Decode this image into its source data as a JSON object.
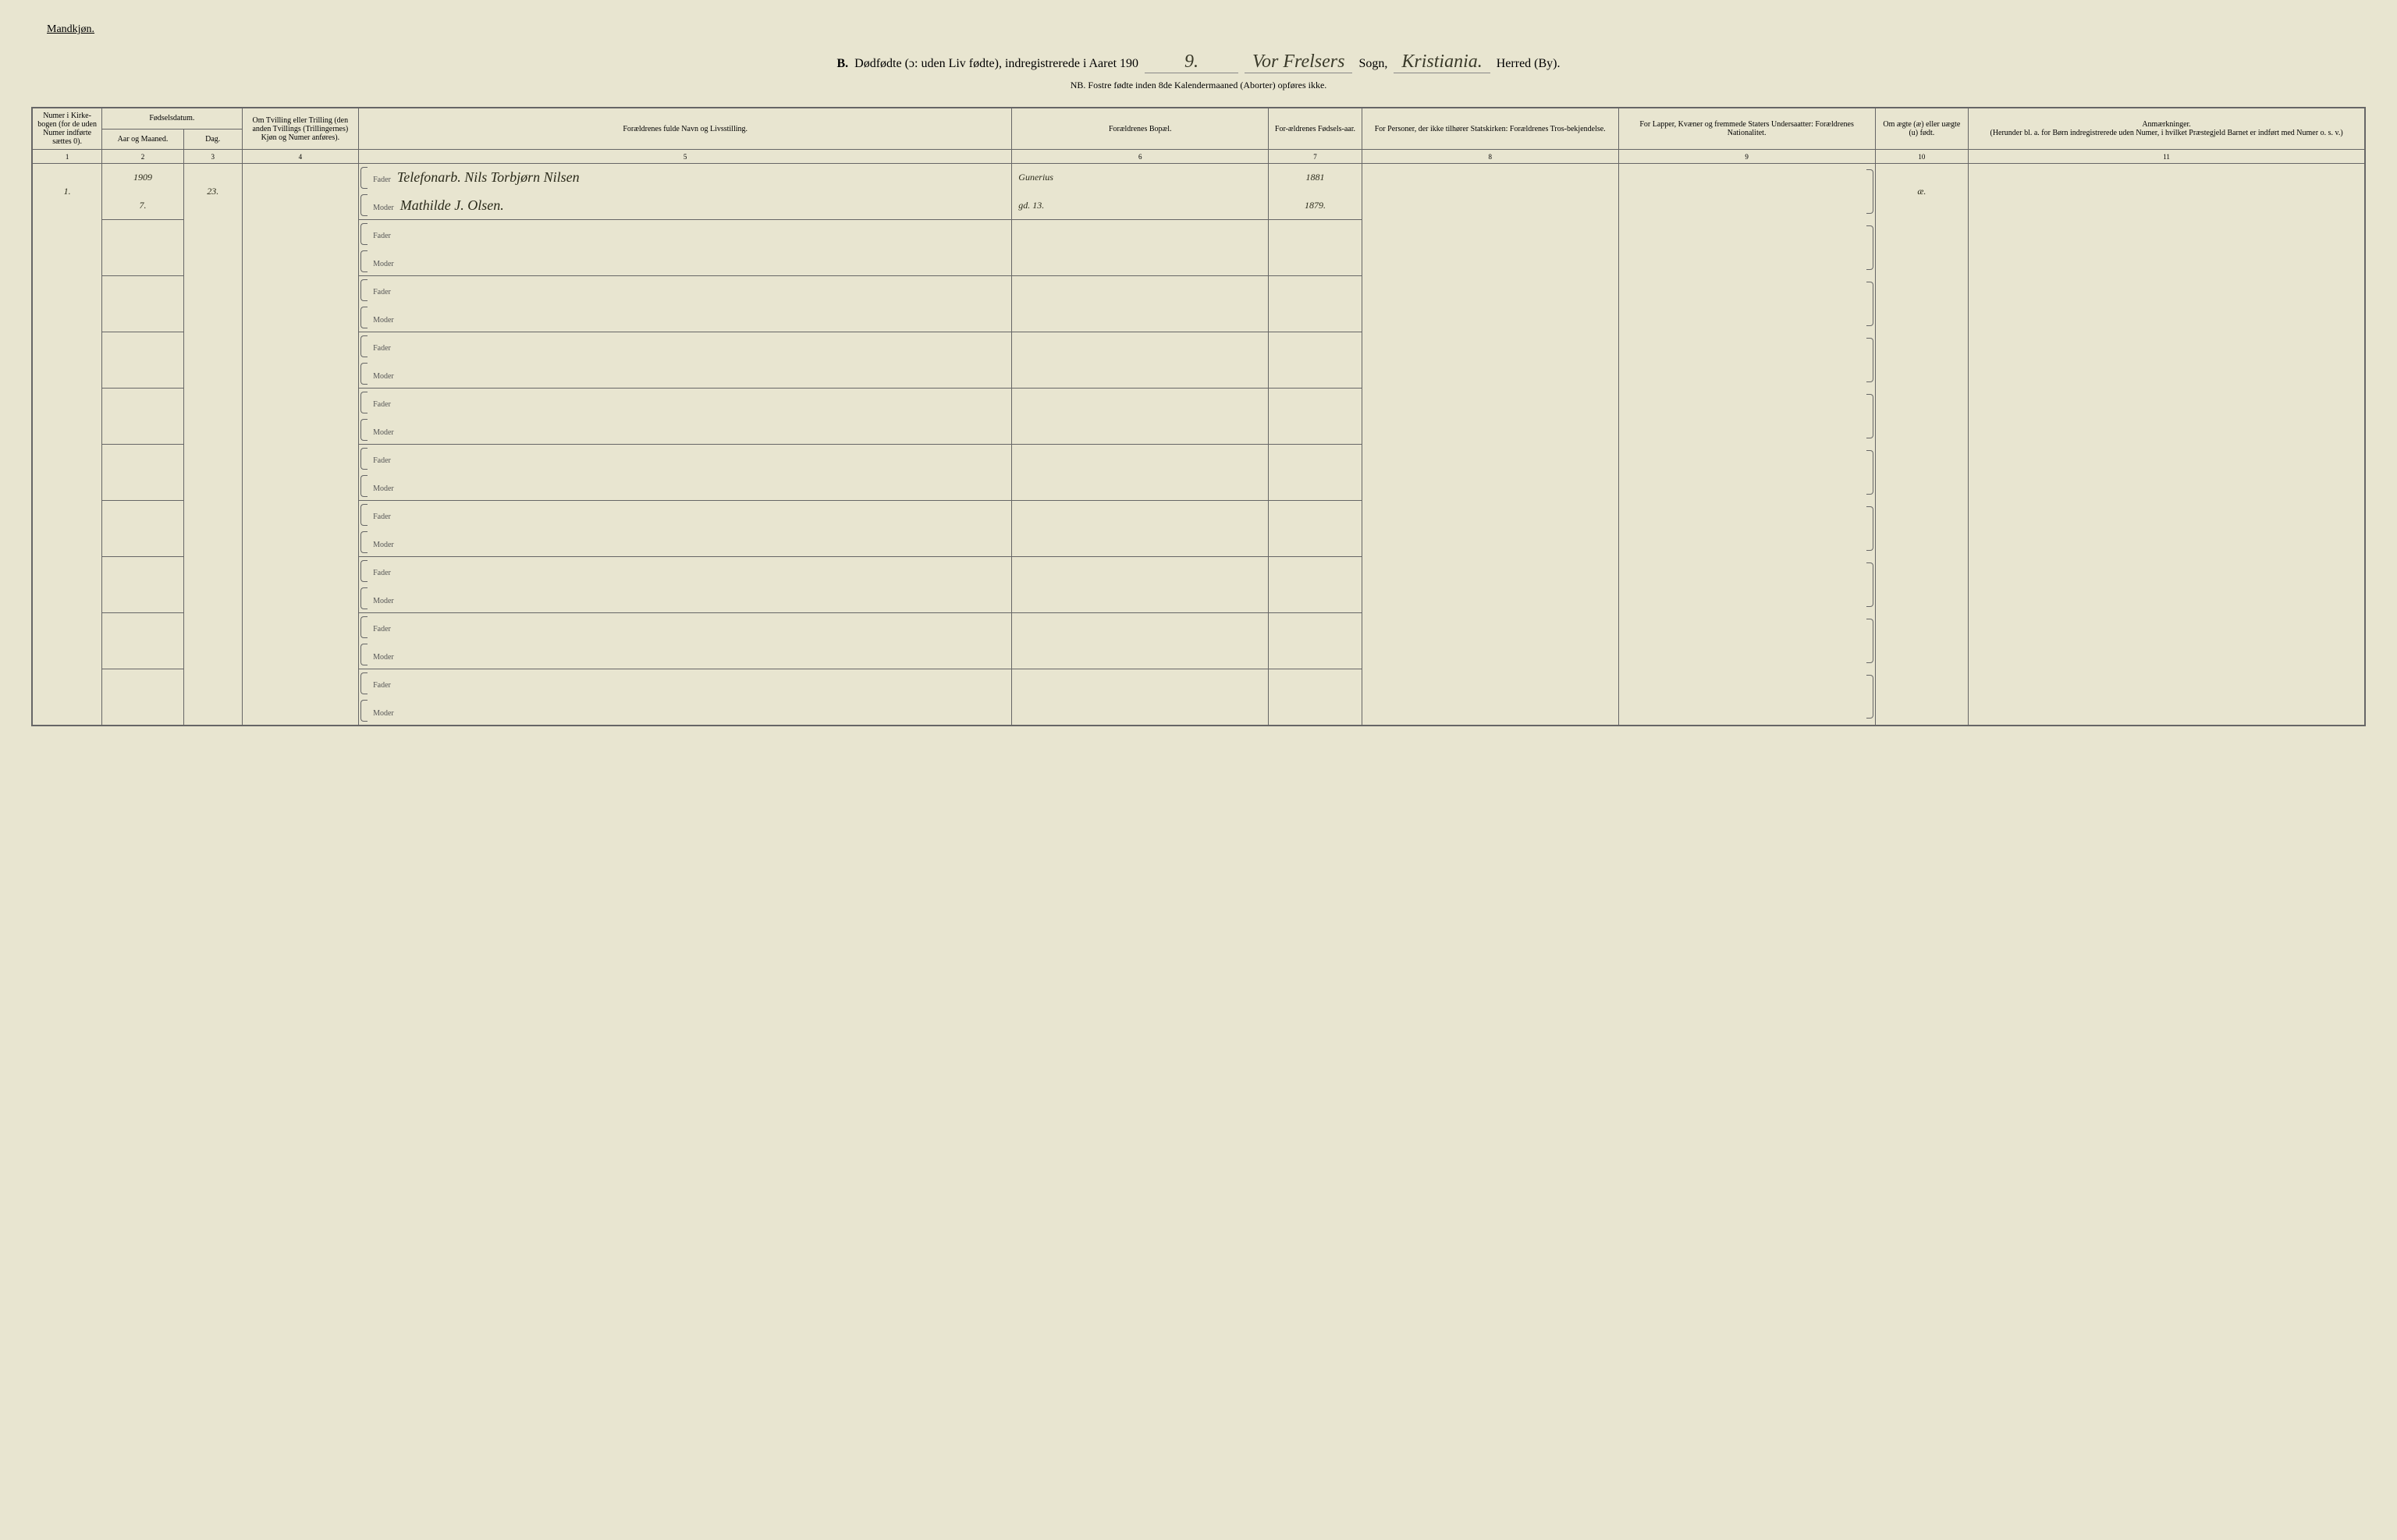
{
  "header": {
    "gender_label": "Mandkjøn.",
    "title_prefix": "B.",
    "title_main": "Dødfødte (ɔ: uden Liv fødte), indregistrerede i Aaret 190",
    "year_suffix": "9.",
    "sogn_hw": "Vor Frelsers",
    "sogn_label": "Sogn,",
    "herred_hw": "Kristiania.",
    "herred_label": "Herred (By).",
    "subtitle": "NB. Fostre fødte inden 8de Kalendermaaned (Aborter) opføres ikke."
  },
  "columns": {
    "c1": "Numer i Kirke-bogen (for de uden Numer indførte sættes 0).",
    "c2_group": "Fødselsdatum.",
    "c2": "Aar og Maaned.",
    "c3": "Dag.",
    "c4": "Om Tvilling eller Trilling (den anden Tvillings (Trillingernes) Kjøn og Numer anføres).",
    "c5": "Forældrenes fulde Navn og Livsstilling.",
    "c6": "Forældrenes Bopæl.",
    "c7": "For-ældrenes Fødsels-aar.",
    "c8": "For Personer, der ikke tilhører Statskirken: Forældrenes Tros-bekjendelse.",
    "c9": "For Lapper, Kvæner og fremmede Staters Undersaatter: Forældrenes Nationalitet.",
    "c10": "Om ægte (æ) eller uægte (u) født.",
    "c11": "Anmærkninger.",
    "c11_sub": "(Herunder bl. a. for Børn indregistrerede uden Numer, i hvilket Præstegjeld Barnet er indført med Numer o. s. v.)"
  },
  "col_nums": [
    "1",
    "2",
    "3",
    "4",
    "5",
    "6",
    "7",
    "8",
    "9",
    "10",
    "11"
  ],
  "labels": {
    "fader": "Fader",
    "moder": "Moder"
  },
  "entries": [
    {
      "num": "1.",
      "year_month": "1909",
      "month": "7.",
      "day": "23.",
      "twin": "",
      "fader_name": "Telefonarb. Nils Torbjørn Nilsen",
      "moder_name": "Mathilde J. Olsen.",
      "fader_bopael": "Gunerius",
      "moder_bopael": "gd. 13.",
      "fader_year": "1881",
      "moder_year": "1879.",
      "c8": "",
      "c9": "",
      "c10": "æ.",
      "c11": ""
    }
  ],
  "empty_rows": 9
}
